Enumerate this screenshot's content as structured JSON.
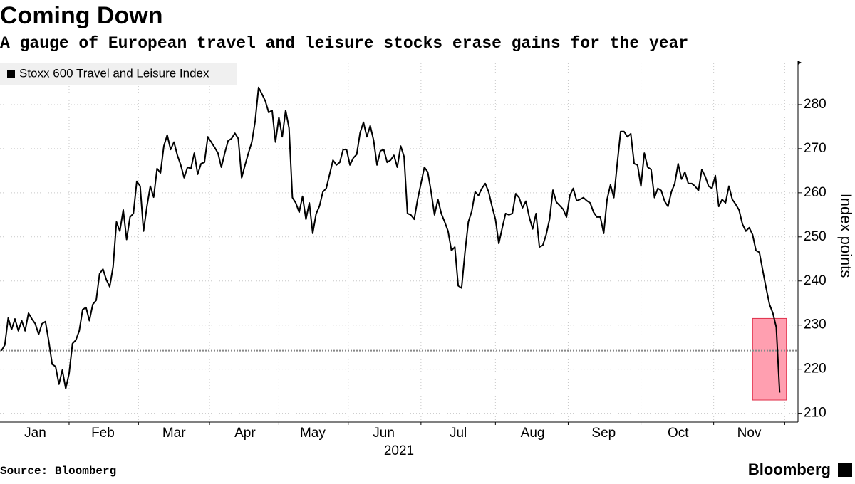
{
  "chart_data": {
    "type": "line",
    "title": "Coming Down",
    "subtitle": "A gauge of European travel and leisure stocks erase gains for the year",
    "y_label": "Index points",
    "x_label": "2021",
    "source": "Source: Bloomberg",
    "brand": "Bloomberg",
    "legend": "top-left",
    "grid": true,
    "series": [
      {
        "name": "Stoxx 600 Travel and Leisure Index",
        "color": "#000000",
        "values": [
          224.2,
          225.5,
          231.6,
          229,
          231.4,
          228.7,
          231,
          228.7,
          232.7,
          231.4,
          230.3,
          227.9,
          230.3,
          230.8,
          226.3,
          221.1,
          220.6,
          216.6,
          219.8,
          215.6,
          219,
          225.8,
          226.6,
          228.7,
          233.5,
          234,
          231,
          234.7,
          235.6,
          241.6,
          242.7,
          240.3,
          238.7,
          243.2,
          253.4,
          251.3,
          256.1,
          249.4,
          254.5,
          255.3,
          262.6,
          261.5,
          251.3,
          256.9,
          261.5,
          259,
          265.5,
          264.5,
          270.6,
          273.1,
          269.8,
          271.5,
          268.5,
          266.3,
          263.4,
          265.8,
          265.5,
          269,
          264.2,
          266.6,
          266.9,
          272.7,
          271.5,
          270.3,
          269,
          265.8,
          269,
          271.8,
          272.3,
          273.5,
          272.3,
          263.4,
          266.3,
          269,
          271.5,
          276.3,
          283.9,
          282.4,
          280.8,
          278.2,
          278.7,
          271.5,
          277.1,
          272.7,
          278.7,
          274.7,
          258.9,
          257.7,
          255.6,
          259.2,
          254,
          257.7,
          250.8,
          255.2,
          257,
          260.2,
          261,
          264.2,
          267.4,
          266.3,
          266.9,
          269.8,
          269.8,
          266.3,
          267.9,
          268.7,
          273.6,
          276,
          272.7,
          275.2,
          271.9,
          266.3,
          269.5,
          269.8,
          266.9,
          267.4,
          268.5,
          265.8,
          270.6,
          268.2,
          255.3,
          255,
          254,
          258.5,
          262.1,
          265.8,
          264.7,
          260.2,
          255,
          258.5,
          255.3,
          253.4,
          251.3,
          246.9,
          247.7,
          238.9,
          238.4,
          246.5,
          253.4,
          255.8,
          260.2,
          259.4,
          261,
          262.1,
          260.2,
          256.9,
          254,
          248.5,
          252,
          255.3,
          255,
          255.3,
          259.8,
          258.9,
          256.6,
          258.1,
          254.5,
          251.8,
          255.3,
          247.7,
          248.1,
          250.5,
          254,
          260.6,
          257.9,
          257.1,
          256.3,
          254.5,
          259.4,
          261,
          258.2,
          258.5,
          258.9,
          258.2,
          257.7,
          255.6,
          254.5,
          254.5,
          250.8,
          258.5,
          261.8,
          258.9,
          266.6,
          273.9,
          273.9,
          272.7,
          273.4,
          266.6,
          266.3,
          261.5,
          269,
          265.8,
          265.3,
          258.9,
          261,
          260.5,
          258.1,
          256.9,
          260.2,
          262.1,
          266.6,
          263.1,
          264.7,
          262.1,
          262.1,
          261.5,
          260.5,
          265.3,
          263.7,
          261.5,
          261,
          263.9,
          256.9,
          258.5,
          257.7,
          261.5,
          258.5,
          257.4,
          256.1,
          252.9,
          251.3,
          252.1,
          250.5,
          246.9,
          246.5,
          242.4,
          238.4,
          234.7,
          232.7,
          229.5,
          214.7
        ]
      }
    ],
    "xlim": [
      0,
      231
    ],
    "xticks": [
      {
        "value": 10,
        "label": "Jan"
      },
      {
        "value": 30,
        "label": "Feb"
      },
      {
        "value": 51,
        "label": "Mar"
      },
      {
        "value": 72,
        "label": "Apr"
      },
      {
        "value": 92,
        "label": "May"
      },
      {
        "value": 113,
        "label": "Jun"
      },
      {
        "value": 135,
        "label": "Jul"
      },
      {
        "value": 157,
        "label": "Aug"
      },
      {
        "value": 178,
        "label": "Sep"
      },
      {
        "value": 200,
        "label": "Oct"
      },
      {
        "value": 221,
        "label": "Nov"
      }
    ],
    "ylim": [
      208,
      290
    ],
    "yticks": [
      210,
      220,
      230,
      240,
      250,
      260,
      270,
      280
    ],
    "reference_line": 224.2,
    "highlight": {
      "xlim": [
        222,
        232
      ],
      "ylim": [
        213,
        231.5
      ],
      "color": "#ff9fb0"
    }
  }
}
